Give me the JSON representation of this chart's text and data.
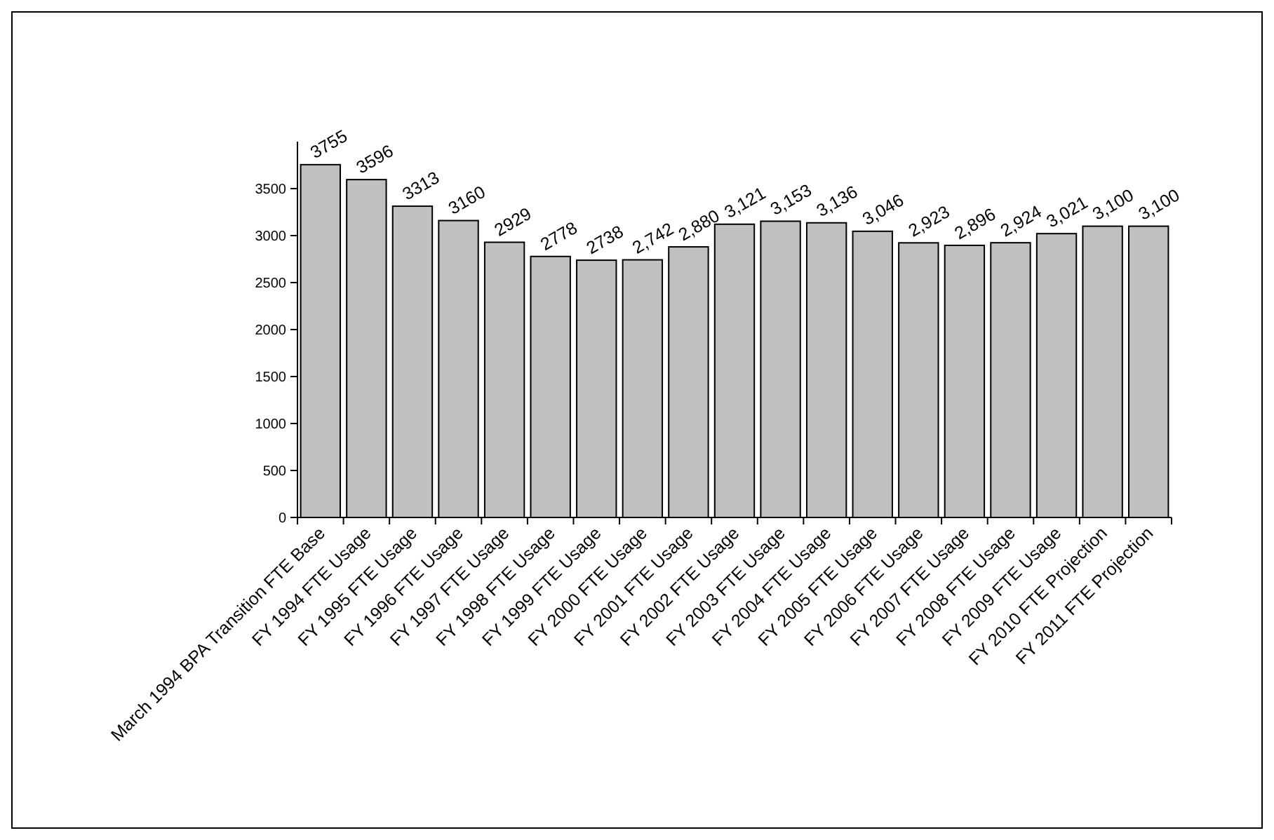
{
  "chart_data": {
    "type": "bar",
    "categories": [
      "March 1994 BPA Transition FTE Base",
      "FY 1994 FTE Usage",
      "FY 1995 FTE Usage",
      "FY 1996 FTE Usage",
      "FY 1997 FTE Usage",
      "FY 1998 FTE Usage",
      "FY 1999 FTE Usage",
      "FY 2000 FTE Usage",
      "FY 2001 FTE Usage",
      "FY 2002 FTE Usage",
      "FY 2003 FTE Usage",
      "FY 2004 FTE Usage",
      "FY 2005 FTE Usage",
      "FY 2006 FTE Usage",
      "FY 2007 FTE Usage",
      "FY 2008 FTE Usage",
      "FY 2009 FTE Usage",
      "FY 2010 FTE Projection",
      "FY 2011 FTE Projection"
    ],
    "values": [
      3755,
      3596,
      3313,
      3160,
      2929,
      2778,
      2738,
      2742,
      2880,
      3121,
      3153,
      3136,
      3046,
      2923,
      2896,
      2924,
      3021,
      3100,
      3100
    ],
    "value_labels": [
      "3755",
      "3596",
      "3313",
      "3160",
      "2929",
      "2778",
      "2738",
      "2,742",
      "2,880",
      "3,121",
      "3,153",
      "3,136",
      "3,046",
      "2,923",
      "2,896",
      "2,924",
      "3,021",
      "3,100",
      "3,100"
    ],
    "color": "#c0c0c0",
    "ylim": [
      0,
      4000
    ],
    "yticks": [
      0,
      500,
      1000,
      1500,
      2000,
      2500,
      3000,
      3500
    ],
    "grid": false
  }
}
